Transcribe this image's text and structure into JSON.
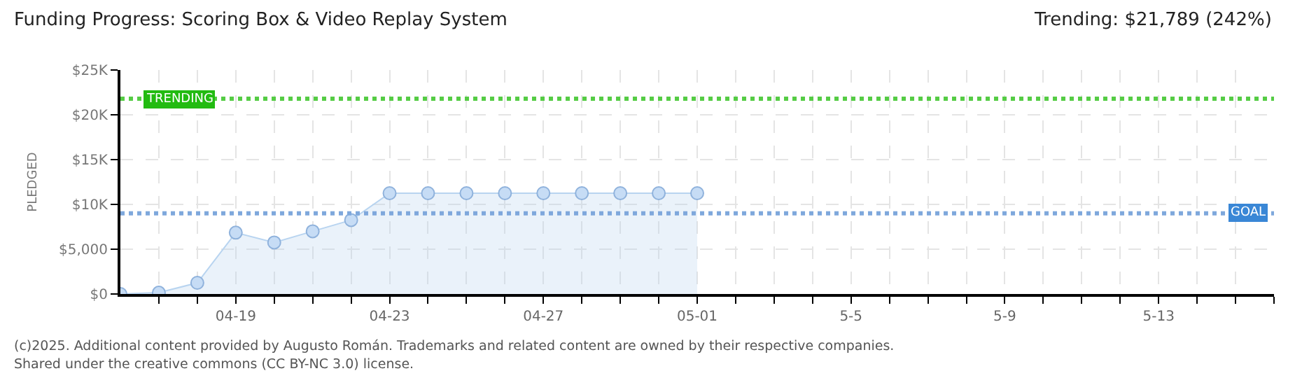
{
  "chart_data": {
    "type": "area",
    "title": "Funding Progress: Scoring Box & Video Replay System",
    "subtitle": "Trending: $21,789 (242%)",
    "ylabel": "PLEDGED",
    "x": [
      "2025-04-16",
      "2025-04-17",
      "2025-04-18",
      "2025-04-19",
      "2025-04-20",
      "2025-04-21",
      "2025-04-22",
      "2025-04-23",
      "2025-04-24",
      "2025-04-25",
      "2025-04-26",
      "2025-04-27",
      "2025-04-28",
      "2025-04-29",
      "2025-04-30",
      "2025-05-01"
    ],
    "series": [
      {
        "color": "#b8d4f0",
        "values": [
          0,
          150,
          1250,
          6850,
          5750,
          7000,
          8250,
          11250,
          11250,
          11250,
          11250,
          11250,
          11250,
          11250,
          11250,
          11250
        ]
      }
    ],
    "marker": "circle",
    "grid": true,
    "xlim": [
      "2025-04-16",
      "2025-05-16"
    ],
    "xticks": [
      {
        "value": "2025-04-17",
        "label": null
      },
      {
        "value": "2025-04-18",
        "label": null
      },
      {
        "value": "2025-04-19",
        "label": "04-19"
      },
      {
        "value": "2025-04-20",
        "label": null
      },
      {
        "value": "2025-04-21",
        "label": null
      },
      {
        "value": "2025-04-22",
        "label": null
      },
      {
        "value": "2025-04-23",
        "label": "04-23"
      },
      {
        "value": "2025-04-24",
        "label": null
      },
      {
        "value": "2025-04-25",
        "label": null
      },
      {
        "value": "2025-04-26",
        "label": null
      },
      {
        "value": "2025-04-27",
        "label": "04-27"
      },
      {
        "value": "2025-04-28",
        "label": null
      },
      {
        "value": "2025-04-29",
        "label": null
      },
      {
        "value": "2025-04-30",
        "label": null
      },
      {
        "value": "2025-05-01",
        "label": "05-01"
      },
      {
        "value": "2025-05-02",
        "label": null
      },
      {
        "value": "2025-05-03",
        "label": null
      },
      {
        "value": "2025-05-04",
        "label": null
      },
      {
        "value": "2025-05-05",
        "label": "5-5"
      },
      {
        "value": "2025-05-06",
        "label": null
      },
      {
        "value": "2025-05-07",
        "label": null
      },
      {
        "value": "2025-05-08",
        "label": null
      },
      {
        "value": "2025-05-09",
        "label": "5-9"
      },
      {
        "value": "2025-05-10",
        "label": null
      },
      {
        "value": "2025-05-11",
        "label": null
      },
      {
        "value": "2025-05-12",
        "label": null
      },
      {
        "value": "2025-05-13",
        "label": "5-13"
      },
      {
        "value": "2025-05-14",
        "label": null
      },
      {
        "value": "2025-05-15",
        "label": null
      },
      {
        "value": "2025-05-16",
        "label": null
      }
    ],
    "ylim": [
      0,
      25000
    ],
    "yticks": [
      {
        "value": 0,
        "label": "$0"
      },
      {
        "value": 5000,
        "label": "$5,000"
      },
      {
        "value": 10000,
        "label": "$10K"
      },
      {
        "value": 15000,
        "label": "$15K"
      },
      {
        "value": 20000,
        "label": "$20K"
      },
      {
        "value": 25000,
        "label": "$25K"
      }
    ],
    "ref_lines": [
      {
        "axis": "y",
        "value": 21789,
        "label": "TRENDING",
        "color": "#55cc44",
        "line_style": "dotted"
      },
      {
        "axis": "y",
        "value": 9000,
        "label": "GOAL",
        "color": "#7fa8dc",
        "line_style": "dotted"
      }
    ],
    "annotations": [
      "(c)2025. Additional content provided by Augusto Román. Trademarks and related content are owned by their respective companies.",
      "Shared under the creative commons (CC BY-NC 3.0) license."
    ]
  }
}
